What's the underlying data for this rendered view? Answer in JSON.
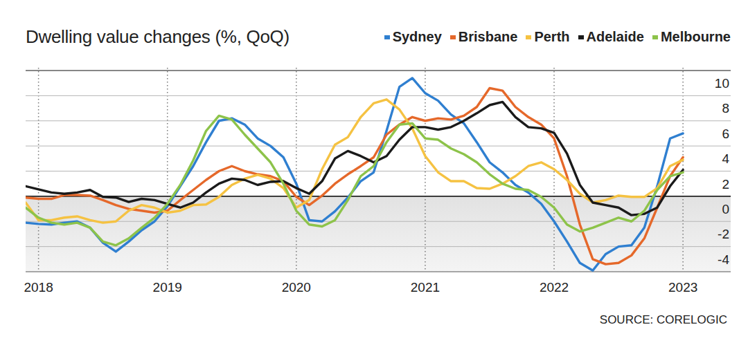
{
  "chart_data": {
    "type": "line",
    "title": "Dwelling value changes (%, QoQ)",
    "source": "SOURCE: CORELOGIC",
    "x": [
      2017.9,
      2018.0,
      2018.1,
      2018.2,
      2018.3,
      2018.4,
      2018.5,
      2018.6,
      2018.7,
      2018.8,
      2018.9,
      2019.0,
      2019.1,
      2019.2,
      2019.3,
      2019.4,
      2019.5,
      2019.6,
      2019.7,
      2019.8,
      2019.9,
      2020.0,
      2020.1,
      2020.2,
      2020.3,
      2020.4,
      2020.5,
      2020.6,
      2020.7,
      2020.8,
      2020.9,
      2021.0,
      2021.1,
      2021.2,
      2021.3,
      2021.4,
      2021.5,
      2021.6,
      2021.7,
      2021.8,
      2021.9,
      2022.0,
      2022.1,
      2022.2,
      2022.3,
      2022.4,
      2022.5,
      2022.6,
      2022.7,
      2022.8,
      2022.9,
      2023.0
    ],
    "series": [
      {
        "name": "Sydney",
        "color": "#2f7fd0",
        "values": [
          -2.1,
          -2.2,
          -2.25,
          -2.1,
          -2.0,
          -2.5,
          -3.7,
          -4.4,
          -3.6,
          -2.7,
          -2.0,
          -0.8,
          0.8,
          2.4,
          4.3,
          6.0,
          6.2,
          5.7,
          4.6,
          4.0,
          3.1,
          1.0,
          -1.9,
          -2.0,
          -1.2,
          -0.1,
          1.2,
          1.9,
          5.2,
          8.7,
          9.4,
          8.2,
          7.6,
          6.5,
          5.8,
          4.3,
          2.7,
          1.9,
          0.9,
          0.3,
          -0.6,
          -2.0,
          -3.6,
          -5.3,
          -5.9,
          -4.6,
          -4.0,
          -3.9,
          -2.5,
          0.8,
          4.6,
          5.0
        ]
      },
      {
        "name": "Brisbane",
        "color": "#e5682a",
        "values": [
          -0.1,
          -0.2,
          -0.2,
          0.1,
          0.1,
          0.05,
          -0.3,
          -0.7,
          -1.0,
          -1.15,
          -1.3,
          -1.15,
          -0.3,
          0.5,
          1.3,
          2.0,
          2.4,
          2.0,
          1.75,
          1.6,
          1.2,
          -0.05,
          -0.7,
          0.05,
          1.0,
          1.75,
          2.4,
          3.1,
          4.9,
          5.7,
          6.3,
          6.0,
          6.2,
          6.1,
          6.4,
          7.1,
          8.6,
          8.4,
          7.1,
          6.3,
          5.7,
          4.6,
          1.6,
          -2.25,
          -5.0,
          -5.4,
          -5.3,
          -4.7,
          -3.35,
          -0.9,
          1.6,
          3.1
        ]
      },
      {
        "name": "Perth",
        "color": "#f5c242",
        "values": [
          -0.5,
          -1.9,
          -1.9,
          -1.7,
          -1.6,
          -1.9,
          -2.1,
          -2.0,
          -1.15,
          -0.7,
          -0.9,
          -1.3,
          -1.15,
          -0.7,
          -0.65,
          -0.05,
          0.9,
          1.4,
          1.7,
          1.4,
          0.65,
          -0.9,
          -0.3,
          2.15,
          4.1,
          4.7,
          6.3,
          7.4,
          7.7,
          6.9,
          5.4,
          3.2,
          1.9,
          1.2,
          1.2,
          0.65,
          0.6,
          1.0,
          1.6,
          2.4,
          2.7,
          2.15,
          1.3,
          0.2,
          -0.5,
          -0.3,
          0.05,
          -0.05,
          -0.05,
          0.65,
          2.4,
          2.9
        ]
      },
      {
        "name": "Adelaide",
        "color": "#1a1a1a",
        "values": [
          0.8,
          0.55,
          0.3,
          0.2,
          0.3,
          0.5,
          -0.05,
          -0.1,
          -0.45,
          -0.2,
          -0.3,
          -0.6,
          -0.9,
          -0.5,
          0.3,
          1.0,
          1.4,
          1.3,
          0.9,
          1.15,
          1.2,
          0.65,
          0.2,
          1.2,
          3.0,
          3.6,
          3.2,
          2.7,
          3.2,
          4.5,
          5.5,
          5.5,
          5.3,
          5.5,
          6.0,
          6.6,
          7.25,
          7.5,
          6.3,
          5.5,
          5.4,
          5.05,
          3.4,
          0.9,
          -0.5,
          -0.7,
          -0.9,
          -1.5,
          -1.4,
          -0.9,
          0.8,
          2.1
        ]
      },
      {
        "name": "Melbourne",
        "color": "#8dc34a",
        "values": [
          -0.9,
          -1.7,
          -2.1,
          -2.25,
          -2.1,
          -2.5,
          -3.6,
          -3.9,
          -3.35,
          -2.5,
          -1.7,
          -0.6,
          0.9,
          2.85,
          5.2,
          6.4,
          6.1,
          4.9,
          3.8,
          2.7,
          1.0,
          -1.15,
          -2.25,
          -2.4,
          -1.9,
          -0.3,
          1.6,
          2.4,
          4.3,
          5.7,
          5.8,
          4.6,
          4.5,
          3.8,
          3.35,
          2.7,
          1.75,
          1.0,
          0.6,
          0.5,
          -0.05,
          -0.9,
          -2.25,
          -2.8,
          -2.5,
          -2.1,
          -1.7,
          -2.0,
          -1.15,
          0.5,
          1.6,
          1.9
        ]
      }
    ],
    "xlim": [
      2017.9,
      2023.37
    ],
    "xticks": [
      2018,
      2019,
      2020,
      2021,
      2022,
      2023
    ],
    "ylim": [
      -6,
      10
    ],
    "yticks": [
      -4,
      -2,
      0,
      2,
      4,
      6,
      8,
      10
    ],
    "grid": true,
    "legend": "top"
  }
}
